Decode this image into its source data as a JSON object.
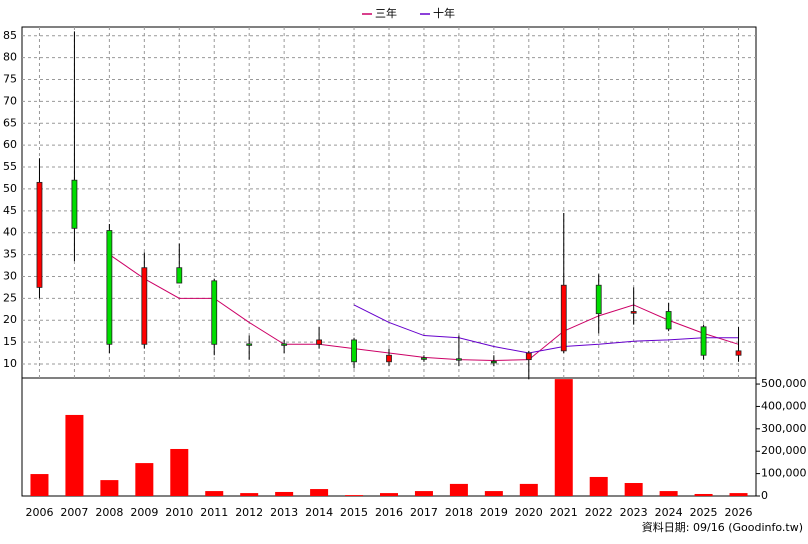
{
  "chart_data": {
    "type": "candlestick",
    "categories": [
      "2006",
      "2007",
      "2008",
      "2009",
      "2010",
      "2011",
      "2012",
      "2013",
      "2014",
      "2015",
      "2016",
      "2017",
      "2018",
      "2019",
      "2020",
      "2021",
      "2022",
      "2023",
      "2024",
      "2025",
      "2026"
    ],
    "open": [
      27.5,
      52,
      40.5,
      14.5,
      32,
      29,
      14.6,
      14.6,
      14.5,
      15.5,
      10.5,
      11.4,
      11.2,
      10.6,
      11,
      13,
      28,
      21.6,
      22,
      18.5,
      12
    ],
    "high": [
      57,
      86,
      42,
      35.5,
      37.5,
      29.5,
      16.5,
      15.5,
      18.5,
      16,
      13.5,
      12,
      16.5,
      12,
      13,
      44.5,
      30.5,
      27.5,
      24,
      19,
      18.5
    ],
    "low": [
      25,
      33.5,
      12.5,
      13.5,
      28.5,
      12,
      11,
      12.5,
      13.5,
      9,
      9.5,
      10.5,
      9.5,
      9.5,
      6.5,
      12.5,
      17,
      19,
      17.5,
      11,
      10.5
    ],
    "close": [
      51.5,
      41,
      14.5,
      32,
      28.5,
      14.5,
      14.4,
      14.4,
      15.5,
      10.5,
      12,
      11.2,
      11,
      10.4,
      12.5,
      28,
      21.5,
      22,
      18,
      12,
      13
    ],
    "up_color": "#ff0000",
    "down_color": "#00dd00",
    "series": [
      {
        "name": "三年",
        "color": "#cc0066",
        "values": [
          null,
          null,
          35,
          29.5,
          25,
          25,
          19.5,
          14.5,
          14.5,
          13.5,
          12.5,
          11.5,
          11,
          10.8,
          11,
          17.5,
          21,
          23.5,
          20,
          17,
          14.5
        ]
      },
      {
        "name": "十年",
        "color": "#6600cc",
        "values": [
          null,
          null,
          null,
          null,
          null,
          null,
          null,
          null,
          null,
          23.5,
          19.5,
          16.5,
          16,
          14,
          12.5,
          14,
          14.5,
          15.2,
          15.5,
          16,
          16
        ]
      }
    ],
    "ylim": [
      6.8,
      87
    ],
    "yticks": [
      10,
      15,
      20,
      25,
      30,
      35,
      40,
      45,
      50,
      55,
      60,
      65,
      70,
      75,
      80,
      85
    ],
    "grid": true,
    "volume": {
      "color": "#ff0000",
      "values": [
        98000,
        362000,
        71000,
        147000,
        210000,
        22000,
        13000,
        18000,
        31000,
        4000,
        13000,
        22000,
        54000,
        22000,
        54000,
        522000,
        85000,
        58000,
        22000,
        9000,
        13000
      ],
      "ylim": [
        0,
        527000
      ],
      "yticks": [
        0,
        {
          "value": 100000,
          "label": "100,000"
        },
        {
          "value": 200000,
          "label": "200,000"
        },
        {
          "value": 300000,
          "label": "300,000"
        },
        {
          "value": 400000,
          "label": "400,000"
        },
        {
          "value": 500000,
          "label": "500,000"
        }
      ]
    },
    "footnote": "資料日期: 09/16 (Goodinfo.tw)"
  }
}
